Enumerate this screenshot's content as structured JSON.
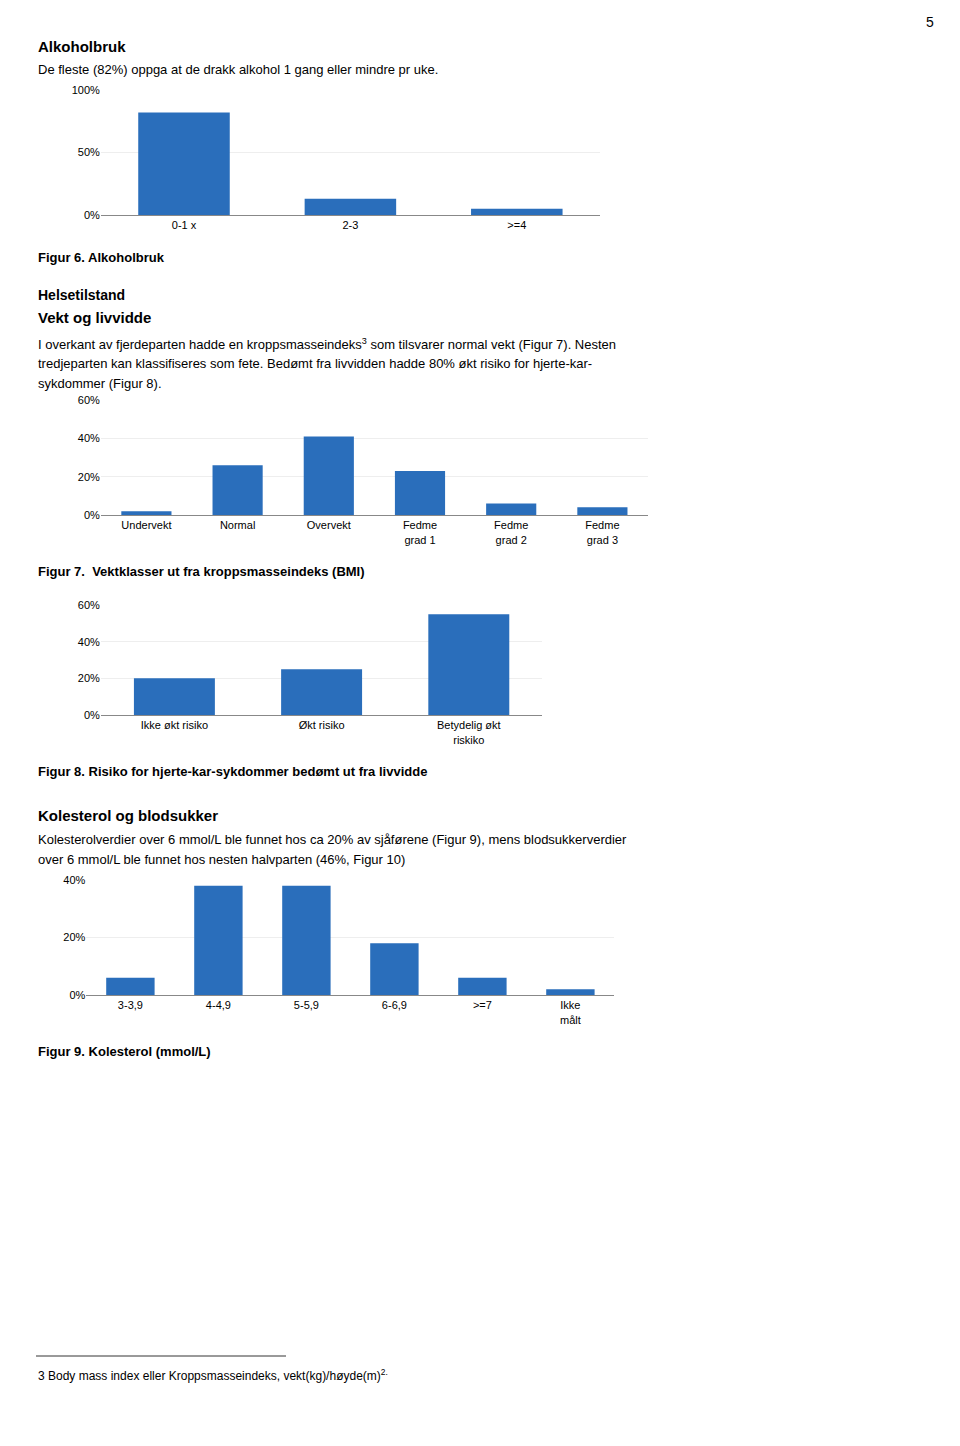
{
  "chart_data": [
    {
      "type": "bar",
      "annotations": [
        "5",
        "Alkoholbruk",
        "De fleste (82%) oppga at de drakk alkohol 1 gang eller mindre pr uke."
      ],
      "title": "Figur 6. Alkoholbruk",
      "categories": [
        "0-1 x",
        "2-3",
        ">=4"
      ],
      "values": [
        82,
        13,
        5
      ],
      "color": "#2a6ebb",
      "ylim": [
        0,
        100
      ],
      "yticks": [
        {
          "value": 0,
          "label": "0%"
        },
        {
          "value": 50,
          "label": "50%"
        },
        {
          "value": 100,
          "label": "100%"
        }
      ],
      "grid": true
    },
    {
      "type": "bar",
      "annotations": [
        "Helsetilstand",
        "Vekt og livvidde",
        [
          "I overkant av fjerdeparten hadde en kroppsmasseindeks",
          "3",
          " som tilsvarer normal vekt (Figur 7). Nesten"
        ],
        "tredjeparten kan klassifiseres som fete. Bedømt fra livvidden hadde 80% økt risiko for hjerte-kar-",
        "sykdommer (Figur 8)."
      ],
      "title": "Figur 7.  Vektklasser ut fra kroppsmasseindeks (BMI)",
      "categories": [
        "Undervekt",
        "Normal",
        "Overvekt",
        "Fedme\ngrad 1",
        "Fedme\ngrad 2",
        "Fedme\ngrad 3"
      ],
      "values": [
        2,
        26,
        41,
        23,
        6,
        4
      ],
      "color": "#2a6ebb",
      "ylim": [
        0,
        60
      ],
      "yticks": [
        {
          "value": 0,
          "label": "0%"
        },
        {
          "value": 20,
          "label": "20%"
        },
        {
          "value": 40,
          "label": "40%"
        },
        {
          "value": 60,
          "label": "60%"
        }
      ],
      "grid": true
    },
    {
      "type": "bar",
      "title": "Figur 8. Risiko for hjerte-kar-sykdommer bedømt ut fra livvidde",
      "categories": [
        "Ikke økt risiko",
        "Økt risiko",
        "Betydelig økt\nriskiko"
      ],
      "values": [
        20,
        25,
        55
      ],
      "color": "#2a6ebb",
      "ylim": [
        0,
        60
      ],
      "yticks": [
        {
          "value": 0,
          "label": "0%"
        },
        {
          "value": 20,
          "label": "20%"
        },
        {
          "value": 40,
          "label": "40%"
        },
        {
          "value": 60,
          "label": "60%"
        }
      ],
      "grid": true
    },
    {
      "type": "bar",
      "annotations": [
        "Kolesterol og blodsukker",
        "Kolesterolverdier over 6 mmol/L ble funnet hos ca 20% av sjåførene (Figur 9), mens blodsukkerverdier",
        "over 6 mmol/L ble funnet hos nesten halvparten (46%, Figur 10)",
        [
          "3 Body mass index eller Kroppsmasseindeks, vekt(kg)/høyde(m)",
          "2."
        ]
      ],
      "title": "Figur 9. Kolesterol (mmol/L)",
      "categories": [
        "3-3,9",
        "4-4,9",
        "5-5,9",
        "6-6,9",
        ">=7",
        "Ikke\nmålt"
      ],
      "values": [
        6,
        38,
        38,
        18,
        6,
        2
      ],
      "color": "#2a6ebb",
      "ylim": [
        0,
        40
      ],
      "yticks": [
        {
          "value": 0,
          "label": "0%"
        },
        {
          "value": 20,
          "label": "20%"
        },
        {
          "value": 40,
          "label": "40%"
        }
      ],
      "grid": true
    }
  ]
}
